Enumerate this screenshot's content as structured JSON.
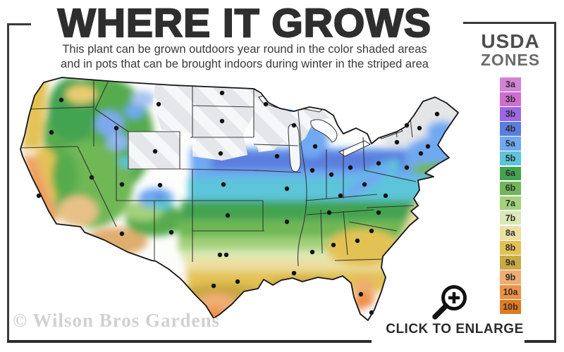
{
  "header": {
    "title": "WHERE IT GROWS",
    "subtitle_line1": "This plant can be grown outdoors year round in the color shaded areas",
    "subtitle_line2": "and in pots that can be brought indoors during winter in the striped area"
  },
  "legend": {
    "title_line1": "USDA",
    "title_line2": "ZONES",
    "zones": [
      {
        "label": "3a",
        "color": "#d483d6"
      },
      {
        "label": "3b",
        "color": "#cc6fce"
      },
      {
        "label": "3b",
        "color": "#9a67e8"
      },
      {
        "label": "4b",
        "color": "#5b7ede"
      },
      {
        "label": "5a",
        "color": "#6fa9f2"
      },
      {
        "label": "5b",
        "color": "#5cc5d9"
      },
      {
        "label": "6a",
        "color": "#43a351"
      },
      {
        "label": "6b",
        "color": "#6fb757"
      },
      {
        "label": "7a",
        "color": "#a3d07c"
      },
      {
        "label": "7b",
        "color": "#d9e9b5"
      },
      {
        "label": "8a",
        "color": "#ecdfa3"
      },
      {
        "label": "8b",
        "color": "#e3c255"
      },
      {
        "label": "9a",
        "color": "#c9a943"
      },
      {
        "label": "9b",
        "color": "#efad72"
      },
      {
        "label": "10a",
        "color": "#ee9144"
      },
      {
        "label": "10b",
        "color": "#e07a20"
      }
    ]
  },
  "footer": {
    "watermark": "© Wilson Bros Gardens",
    "enlarge_label": "CLICK TO ENLARGE"
  }
}
